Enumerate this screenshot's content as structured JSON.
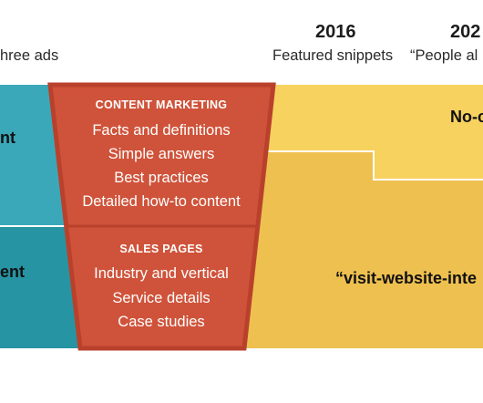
{
  "header": {
    "col_left_caption": "hree ads",
    "col_mid_year": "2016",
    "col_mid_caption": "Featured snippets",
    "col_right_year": "202",
    "col_right_caption": "“People al"
  },
  "left_panel": {
    "top_label": "nt",
    "bottom_label": "ent"
  },
  "funnel": {
    "top_section": {
      "heading": "CONTENT MARKETING",
      "items": [
        "Facts and definitions",
        "Simple answers",
        "Best practices",
        "Detailed how-to content"
      ]
    },
    "bottom_section": {
      "heading": "SALES PAGES",
      "items": [
        "Industry and vertical",
        "Service details",
        "Case studies"
      ]
    }
  },
  "right_panel": {
    "top_label": "No-c",
    "bottom_label": "“visit-website-inte"
  },
  "colors": {
    "teal_light": "#3aa8b8",
    "teal_dark": "#2794a3",
    "funnel_fill": "#cf533a",
    "funnel_border": "#b9412c",
    "yellow_light": "#f7d25f",
    "yellow_dark": "#eec050"
  }
}
